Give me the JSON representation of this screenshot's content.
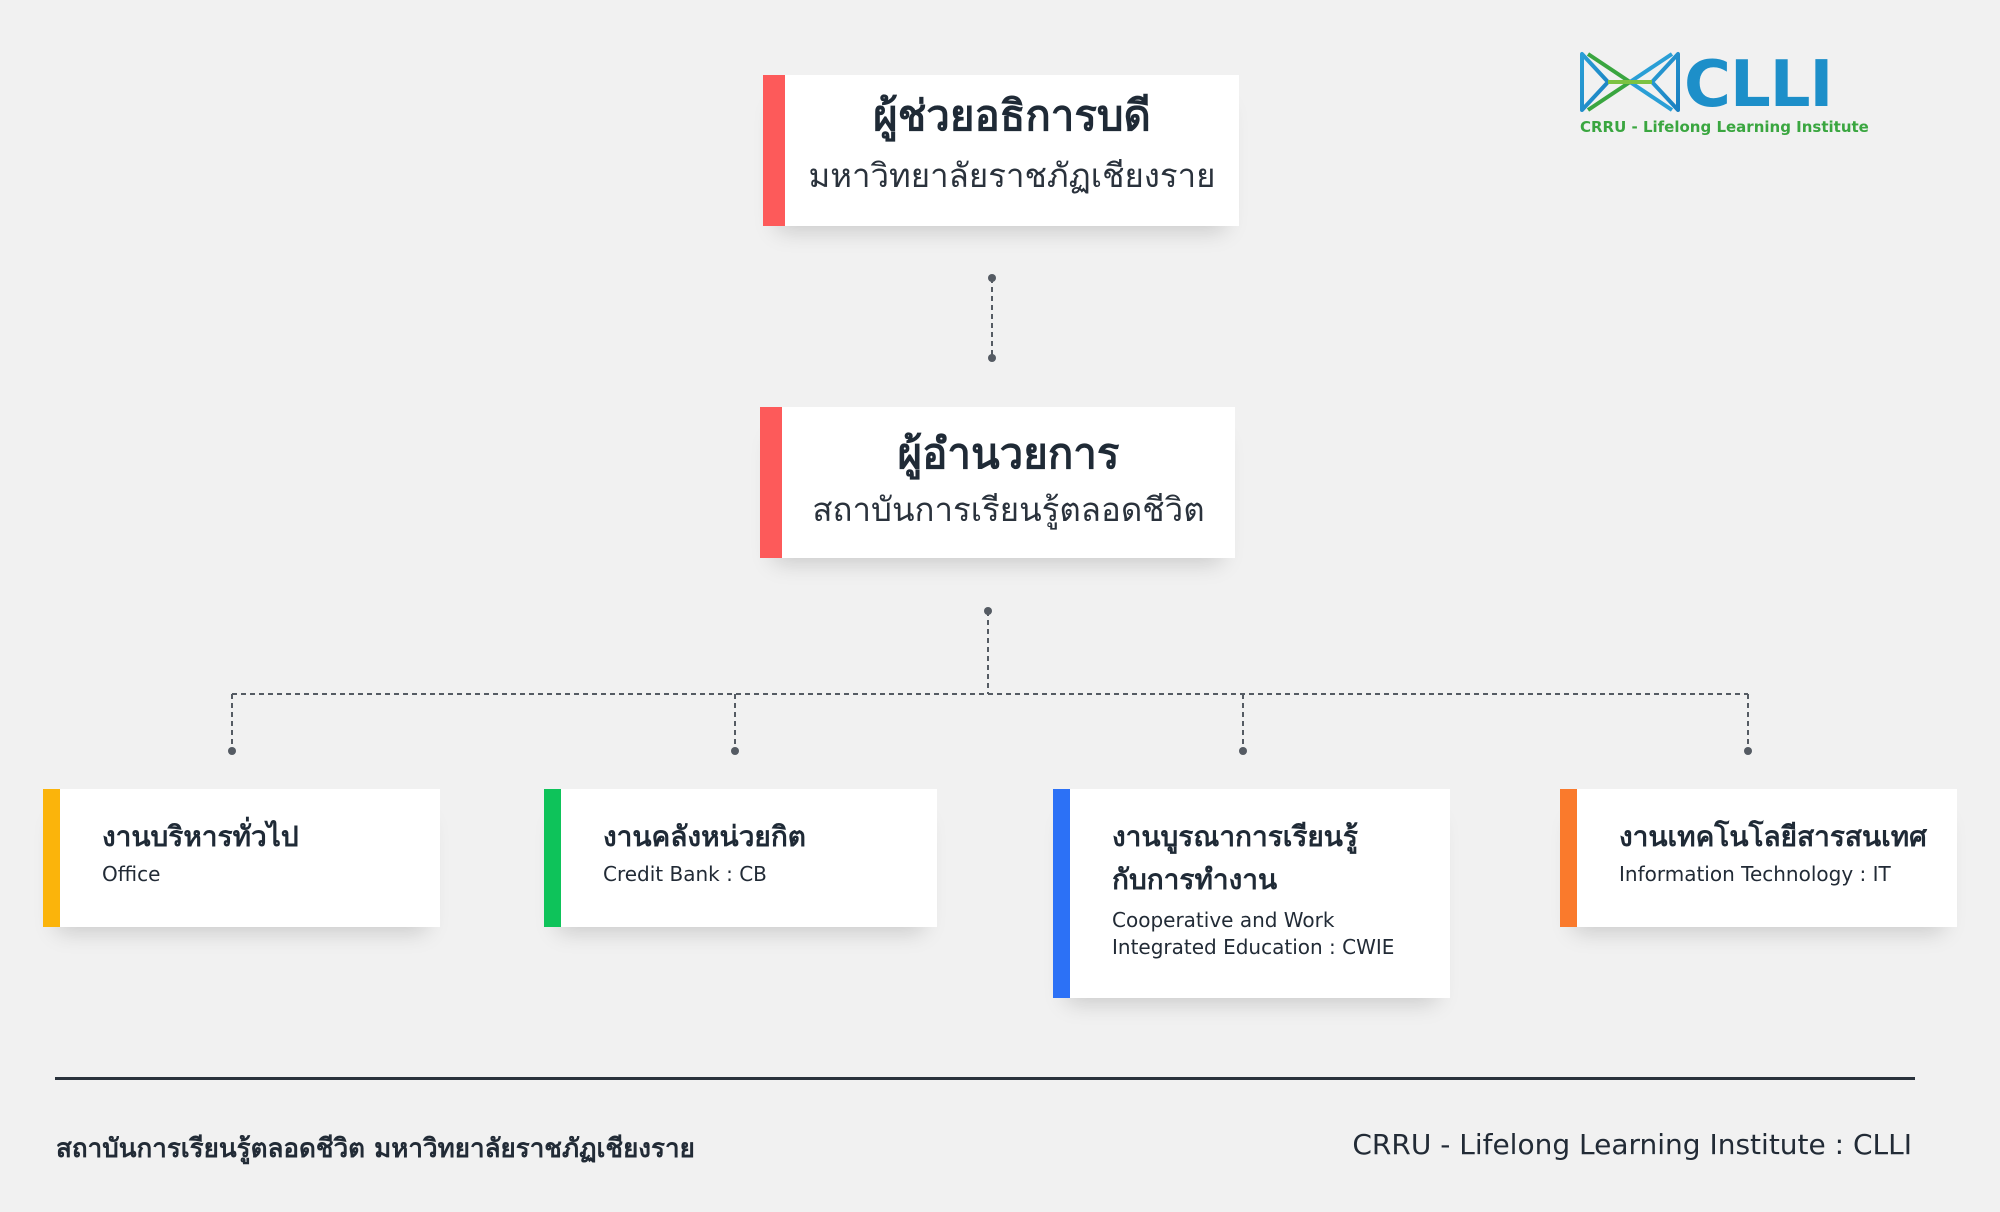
{
  "top": {
    "title": "ผู้ช่วยอธิการบดี",
    "subtitle": "มหาวิทยาลัยราชภัฏเชียงราย",
    "color": "#fd5a5a"
  },
  "director": {
    "title": "ผู้อำนวยการ",
    "subtitle": "สถาบันการเรียนรู้ตลอดชีวิต",
    "color": "#fd5a5a"
  },
  "units": [
    {
      "title": "งานบริหารทั่วไป",
      "subtitle": "Office",
      "color": "#fbb40b"
    },
    {
      "title": "งานคลังหน่วยกิต",
      "subtitle": "Credit Bank : CB",
      "color": "#0ec35a"
    },
    {
      "title_line1": "งานบูรณาการเรียนรู้",
      "title_line2": "กับการทำงาน",
      "subtitle_line1": "Cooperative and Work",
      "subtitle_line2": "Integrated Education : CWIE",
      "color": "#2c71f6"
    },
    {
      "title": "งานเทคโนโลยีสารสนเทศ",
      "subtitle": "Information Technology : IT",
      "color": "#fa7a2c"
    }
  ],
  "logo": {
    "name": "CLLI",
    "tagline": "CRRU - Lifelong Learning Institute",
    "icon": "clli-logo-icon"
  },
  "footer": {
    "left": "สถาบันการเรียนรู้ตลอดชีวิต มหาวิทยาลัยราชภัฏเชียงราย",
    "right": "CRRU - Lifelong Learning Institute : CLLI"
  }
}
